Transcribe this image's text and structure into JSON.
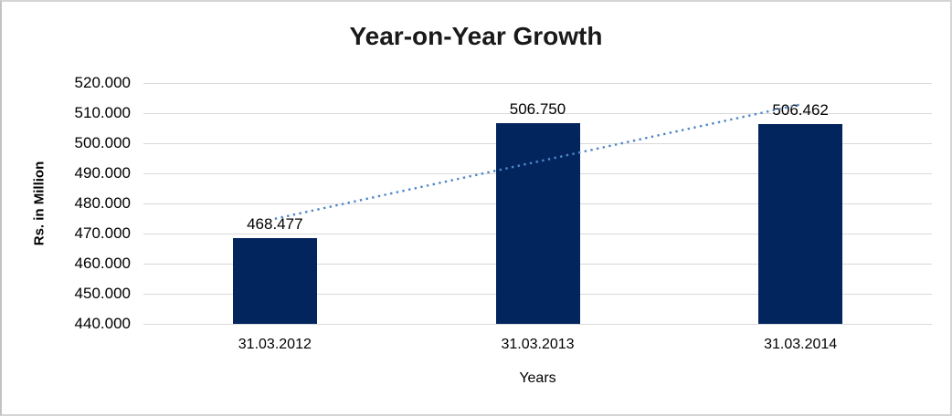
{
  "window": {
    "background": "#ffffff",
    "border_color": "#d5d5d5"
  },
  "chart_data": {
    "type": "bar",
    "title": "Year-on-Year Growth",
    "categories": [
      "31.03.2012",
      "31.03.2013",
      "31.03.2014"
    ],
    "values": [
      468.477,
      506.75,
      506.462
    ],
    "value_labels": [
      "468.477",
      "506.750",
      "506.462"
    ],
    "xlabel": "Years",
    "ylabel": "Rs. in Million",
    "ylim": [
      440,
      520
    ],
    "yticks": [
      {
        "value": 520,
        "label": "520.000"
      },
      {
        "value": 510,
        "label": "510.000"
      },
      {
        "value": 500,
        "label": "500.000"
      },
      {
        "value": 490,
        "label": "490.000"
      },
      {
        "value": 480,
        "label": "480.000"
      },
      {
        "value": 470,
        "label": "470.000"
      },
      {
        "value": 460,
        "label": "460.000"
      },
      {
        "value": 450,
        "label": "450.000"
      },
      {
        "value": 440,
        "label": "440.000"
      }
    ],
    "grid": true,
    "legend": "none",
    "bar_color": "#03255e",
    "bar_width_fraction": 0.32,
    "trendline": {
      "type": "linear",
      "style": "dotted",
      "color": "#5087c9"
    },
    "colors": {
      "gridline": "#d9d9d9",
      "text": "#000000",
      "title": "#1a1a1a"
    }
  }
}
